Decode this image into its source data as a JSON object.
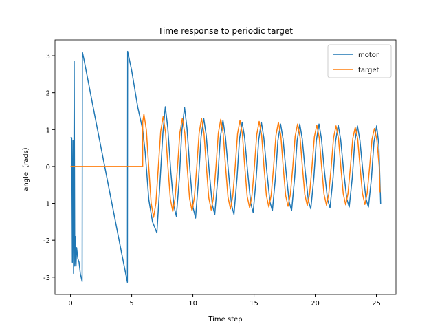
{
  "chart_data": {
    "type": "line",
    "title": "Time response to periodic target",
    "x_label": "Time step",
    "y_label": "angle（rads）",
    "xlim": [
      -1.27,
      26.6
    ],
    "ylim": [
      -3.47,
      3.43
    ],
    "xticks": [
      0,
      5,
      10,
      15,
      20,
      25
    ],
    "yticks": [
      -3,
      -2,
      -1,
      0,
      1,
      2,
      3
    ],
    "legend": "upper right",
    "series": [
      {
        "name": "motor",
        "color": "#1f77b4",
        "x": [
          0,
          0.1,
          0.15,
          0.2,
          0.25,
          0.3,
          0.35,
          0.4,
          0.45,
          0.5,
          0.6,
          0.7,
          0.8,
          0.95,
          0.97,
          1.1,
          2,
          3,
          4,
          4.65,
          4.67,
          5,
          5.5,
          5.9,
          6.1,
          6.4,
          6.7,
          7.06,
          7.3,
          7.55,
          7.75,
          7.95,
          8.2,
          8.45,
          8.65,
          8.9,
          9.1,
          9.32,
          9.52,
          9.77,
          10.02,
          10.22,
          10.47,
          10.67,
          10.89,
          11.09,
          11.34,
          11.59,
          11.79,
          12.04,
          12.24,
          12.46,
          12.66,
          12.91,
          13.16,
          13.36,
          13.61,
          13.81,
          14.03,
          14.23,
          14.48,
          14.73,
          14.93,
          15.18,
          15.38,
          15.6,
          15.8,
          16.05,
          16.3,
          16.5,
          16.75,
          16.95,
          17.17,
          17.37,
          17.62,
          17.87,
          18.07,
          18.32,
          18.52,
          18.74,
          18.94,
          19.19,
          19.44,
          19.64,
          19.89,
          20.09,
          20.31,
          20.51,
          20.76,
          21.01,
          21.21,
          21.46,
          21.66,
          21.88,
          22.08,
          22.33,
          22.58,
          22.78,
          23.03,
          23.23,
          23.45,
          23.65,
          23.9,
          24.15,
          24.35,
          24.6,
          24.8,
          25.02,
          25.2,
          25.35
        ],
        "values": [
          0.78,
          0.78,
          -2.6,
          0.7,
          -2.9,
          2.85,
          -2.7,
          -1.9,
          -2.7,
          -2.2,
          -2.5,
          -2.6,
          -2.9,
          -3.12,
          3.1,
          2.9,
          1.35,
          -0.35,
          -2.05,
          -3.14,
          3.12,
          2.6,
          1.6,
          1.0,
          0.4,
          -0.9,
          -1.5,
          -1.8,
          -0.5,
          0.9,
          1.62,
          1.05,
          -0.15,
          -1.08,
          -1.35,
          -0.3,
          0.97,
          1.6,
          1.04,
          -0.15,
          -1.12,
          -1.4,
          -0.3,
          0.8,
          1.3,
          0.85,
          -0.15,
          -1.04,
          -1.3,
          -0.3,
          0.78,
          1.25,
          0.81,
          -0.15,
          -1.04,
          -1.3,
          -0.3,
          0.75,
          1.2,
          0.78,
          -0.15,
          -1.0,
          -1.25,
          -0.3,
          0.72,
          1.2,
          0.78,
          -0.15,
          -0.96,
          -1.2,
          -0.3,
          0.7,
          1.15,
          0.75,
          -0.15,
          -0.96,
          -1.2,
          -0.3,
          0.7,
          1.15,
          0.75,
          -0.15,
          -0.92,
          -1.15,
          -0.3,
          0.7,
          1.15,
          0.75,
          -0.15,
          -0.9,
          -1.12,
          -0.3,
          0.68,
          1.12,
          0.73,
          -0.15,
          -0.88,
          -1.1,
          -0.3,
          0.66,
          1.1,
          0.72,
          -0.15,
          -0.88,
          -1.1,
          -0.3,
          0.66,
          1.1,
          0.6,
          -1.02
        ]
      },
      {
        "name": "target",
        "color": "#ff7f0e",
        "x": [
          0,
          5.9,
          5.9,
          6.0,
          6.2,
          6.39,
          6.59,
          6.79,
          6.98,
          7.18,
          7.37,
          7.57,
          7.77,
          7.96,
          8.16,
          8.36,
          8.55,
          8.75,
          8.94,
          9.14,
          9.34,
          9.53,
          9.73,
          9.93,
          10.12,
          10.32,
          10.51,
          10.71,
          10.91,
          11.1,
          11.3,
          11.5,
          11.69,
          11.89,
          12.08,
          12.28,
          12.48,
          12.67,
          12.87,
          13.07,
          13.26,
          13.46,
          13.65,
          13.85,
          14.05,
          14.24,
          14.44,
          14.64,
          14.83,
          15.03,
          15.22,
          15.42,
          15.62,
          15.81,
          16.01,
          16.21,
          16.4,
          16.6,
          16.79,
          16.99,
          17.19,
          17.38,
          17.58,
          17.78,
          17.97,
          18.17,
          18.36,
          18.56,
          18.76,
          18.95,
          19.15,
          19.35,
          19.54,
          19.74,
          19.93,
          20.13,
          20.33,
          20.52,
          20.72,
          20.92,
          21.11,
          21.31,
          21.5,
          21.7,
          21.9,
          22.09,
          22.29,
          22.49,
          22.68,
          22.88,
          23.07,
          23.27,
          23.47,
          23.66,
          23.86,
          24.06,
          24.25,
          24.45,
          24.64,
          24.84,
          25.04,
          25.23,
          25.3
        ],
        "values": [
          0,
          0,
          1.2,
          1.42,
          0.99,
          0,
          -0.99,
          -1.38,
          -0.99,
          0,
          0.95,
          1.35,
          0.92,
          0,
          -0.88,
          -1.22,
          -0.86,
          0,
          0.92,
          1.3,
          0.91,
          0,
          -0.87,
          -1.2,
          -0.85,
          0,
          0.9,
          1.3,
          0.9,
          0,
          -0.85,
          -1.18,
          -0.83,
          0,
          0.9,
          1.28,
          0.89,
          0,
          -0.83,
          -1.15,
          -0.81,
          0,
          0.88,
          1.25,
          0.87,
          0,
          -0.81,
          -1.12,
          -0.79,
          0,
          0.86,
          1.22,
          0.85,
          0,
          -0.79,
          -1.1,
          -0.78,
          0,
          0.84,
          1.2,
          0.84,
          0,
          -0.78,
          -1.08,
          -0.76,
          0,
          0.82,
          1.15,
          0.8,
          0,
          -0.76,
          -1.06,
          -0.75,
          0,
          0.8,
          1.12,
          0.78,
          0,
          -0.75,
          -1.05,
          -0.74,
          0,
          0.78,
          1.1,
          0.77,
          0,
          -0.74,
          -1.04,
          -0.73,
          0,
          0.76,
          1.06,
          0.75,
          0,
          -0.73,
          -1.03,
          -0.72,
          0,
          0.74,
          1.03,
          0.72,
          0,
          -0.7
        ]
      }
    ]
  }
}
